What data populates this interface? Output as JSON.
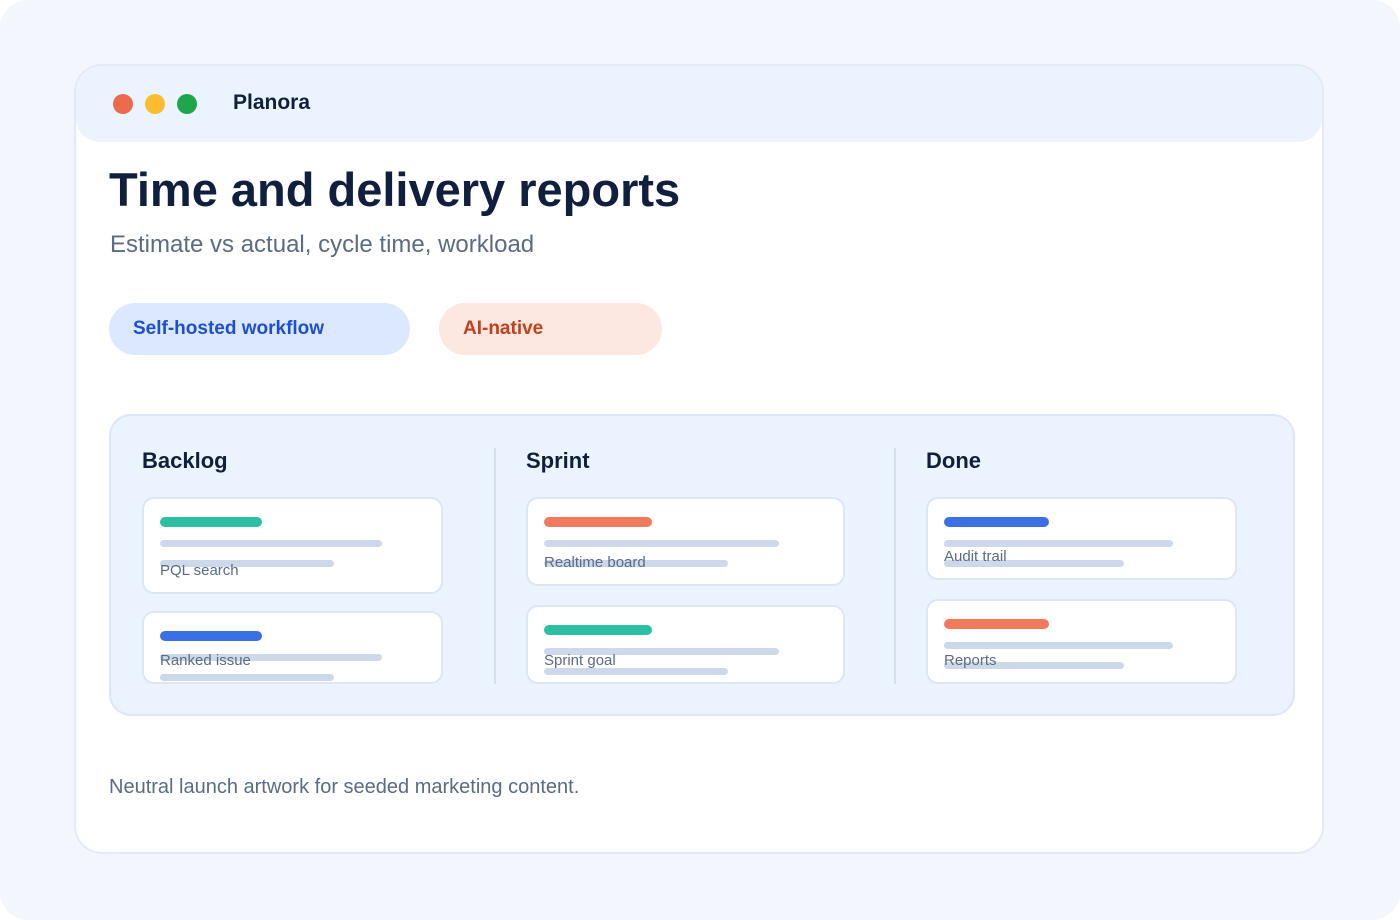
{
  "app": {
    "name": "Planora",
    "window_controls": [
      {
        "name": "close",
        "color": "#ee6a4f"
      },
      {
        "name": "minimize",
        "color": "#fbbd2e"
      },
      {
        "name": "maximize",
        "color": "#1fa64d"
      }
    ]
  },
  "page": {
    "title": "Time and delivery reports",
    "subtitle": "Estimate vs actual, cycle time, workload"
  },
  "pills": [
    {
      "label": "Self-hosted workflow",
      "bg": "#dbe8fd",
      "color": "#1f4fd1"
    },
    {
      "label": "AI-native",
      "bg": "#fce7e1",
      "color": "#c2401c"
    }
  ],
  "board": {
    "columns": [
      {
        "title": "Backlog",
        "cards": [
          {
            "label": "PQL search",
            "tag_color": "#2bbfa4"
          },
          {
            "label": "Ranked issue",
            "tag_color": "#3a6fe6"
          }
        ]
      },
      {
        "title": "Sprint",
        "cards": [
          {
            "label": "Realtime board",
            "tag_color": "#f17a5e"
          },
          {
            "label": "Sprint goal",
            "tag_color": "#2bbfa4"
          }
        ]
      },
      {
        "title": "Done",
        "cards": [
          {
            "label": "Audit trail",
            "tag_color": "#3a6fe6"
          },
          {
            "label": "Reports",
            "tag_color": "#f17a5e"
          }
        ]
      }
    ]
  },
  "footer": {
    "note": "Neutral launch artwork for seeded marketing content."
  }
}
